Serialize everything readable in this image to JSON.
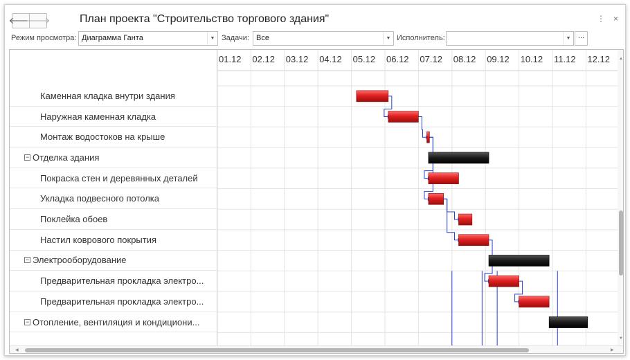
{
  "window": {
    "title": "План проекта \"Строительство торгового здания\"",
    "nav_back": "🡐",
    "nav_forward": "🡒",
    "more_icon": "⋮",
    "close_icon": "×"
  },
  "filters": {
    "view_mode_label": "Режим просмотра:",
    "view_mode_value": "Диаграмма Ганта",
    "tasks_label": "Задачи:",
    "tasks_value": "Все",
    "assignee_label": "Исполнитель:",
    "assignee_value": "",
    "ellipsis": "...",
    "dropdown_icon": "▼"
  },
  "gantt": {
    "dates": [
      "01.12",
      "02.12",
      "03.12",
      "04.12",
      "05.12",
      "06.12",
      "07.12",
      "08.12",
      "09.12",
      "10.12",
      "11.12",
      "12.12"
    ],
    "colors": {
      "task_bar": "#e02020",
      "summary_bar": "#1a1a1a",
      "link": "#2a3fd0",
      "grid": "#e3e3e3"
    },
    "tasks": [
      {
        "name": "Каменная кладка внутри здания",
        "level": 1,
        "start": 4.15,
        "end": 5.1
      },
      {
        "name": "Наружная каменная кладка",
        "level": 1,
        "start": 5.1,
        "end": 6.0
      },
      {
        "name": "Монтаж водостоков на крыше",
        "level": 1,
        "start": 6.25,
        "end": 6.33
      },
      {
        "name": "Отделка здания",
        "level": 0,
        "start": 6.3,
        "end": 8.1
      },
      {
        "name": "Покраска стен и деревянных деталей",
        "level": 1,
        "start": 6.3,
        "end": 7.2
      },
      {
        "name": "Укладка подвесного потолка",
        "level": 1,
        "start": 6.3,
        "end": 6.75
      },
      {
        "name": "Поклейка обоев",
        "level": 1,
        "start": 7.2,
        "end": 7.6
      },
      {
        "name": "Настил коврового покрытия",
        "level": 1,
        "start": 7.2,
        "end": 8.1
      },
      {
        "name": "Электрооборудование",
        "level": 0,
        "start": 8.1,
        "end": 9.9
      },
      {
        "name": "Предварительная прокладка электро...",
        "level": 1,
        "start": 8.1,
        "end": 9.0
      },
      {
        "name": "Предварительная прокладка электро...",
        "level": 1,
        "start": 9.0,
        "end": 9.9
      },
      {
        "name": "Отопление, вентиляция и кондициони...",
        "level": 0,
        "start": 9.9,
        "end": 11.05
      }
    ],
    "links": [
      [
        0,
        1
      ],
      [
        1,
        2
      ],
      [
        2,
        4
      ],
      [
        2,
        5
      ],
      [
        5,
        6
      ],
      [
        5,
        7
      ],
      [
        7,
        9
      ],
      [
        9,
        10
      ]
    ]
  }
}
